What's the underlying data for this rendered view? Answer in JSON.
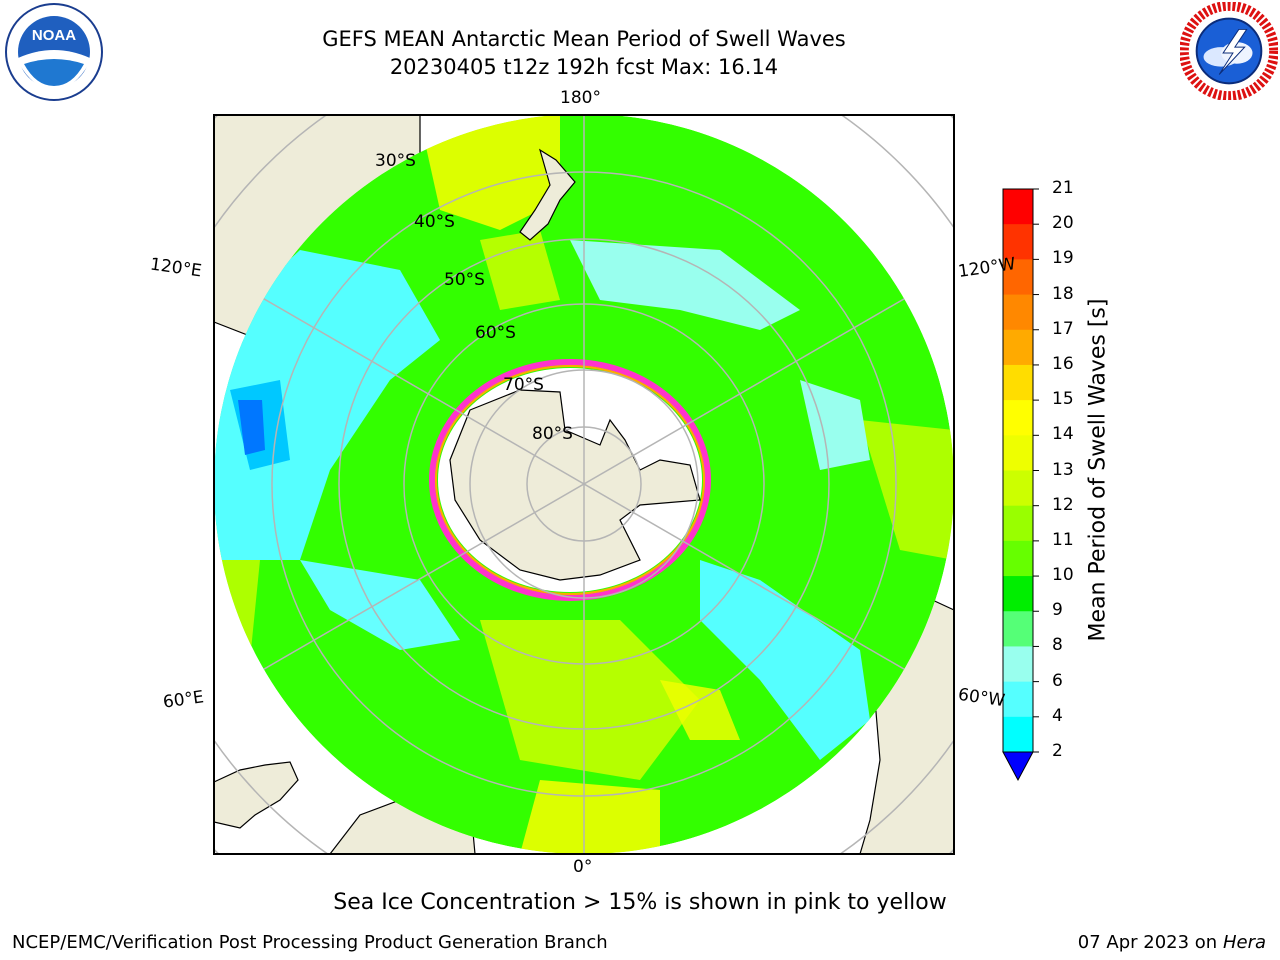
{
  "title": {
    "line1": "GEFS MEAN Antarctic Mean Period of Swell Waves",
    "line2": "20230405 t12z 192h fcst   Max: 16.14"
  },
  "logos": {
    "left": {
      "icon": "noaa-logo",
      "text": "NOAA"
    },
    "right": {
      "icon": "nws-logo"
    }
  },
  "map": {
    "projection": "south-polar-stereographic",
    "longitude_labels": [
      "180°",
      "120°E",
      "120°W",
      "60°E",
      "60°W",
      "0°"
    ],
    "latitude_labels": [
      "30°S",
      "40°S",
      "50°S",
      "60°S",
      "70°S",
      "80°S"
    ],
    "colors": {
      "land": "#eeecd9",
      "ice_edge": "#ff33cc",
      "grid": "#b5b5b5"
    }
  },
  "colorbar": {
    "label": "Mean Period of Swell Waves [s]",
    "ticks": [
      "21",
      "20",
      "19",
      "18",
      "17",
      "16",
      "15",
      "14",
      "13",
      "12",
      "11",
      "10",
      "9",
      "8",
      "6",
      "4",
      "2"
    ],
    "colors": [
      "#ff0000",
      "#ff3300",
      "#ff6600",
      "#ff8800",
      "#ffaa00",
      "#ffdd00",
      "#ffff00",
      "#eeff00",
      "#ccff00",
      "#99ff00",
      "#66ff00",
      "#00ee00",
      "#55ff77",
      "#99ffee",
      "#55ffff",
      "#00ffff",
      "#0077ff",
      "#0000ff"
    ],
    "extend": "min"
  },
  "note": "Sea Ice Concentration > 15% is shown in pink to yellow",
  "footer": {
    "credit": "NCEP/EMC/Verification Post Processing Product Generation Branch",
    "date": "07 Apr 2023 on ",
    "machine": "Hera"
  }
}
